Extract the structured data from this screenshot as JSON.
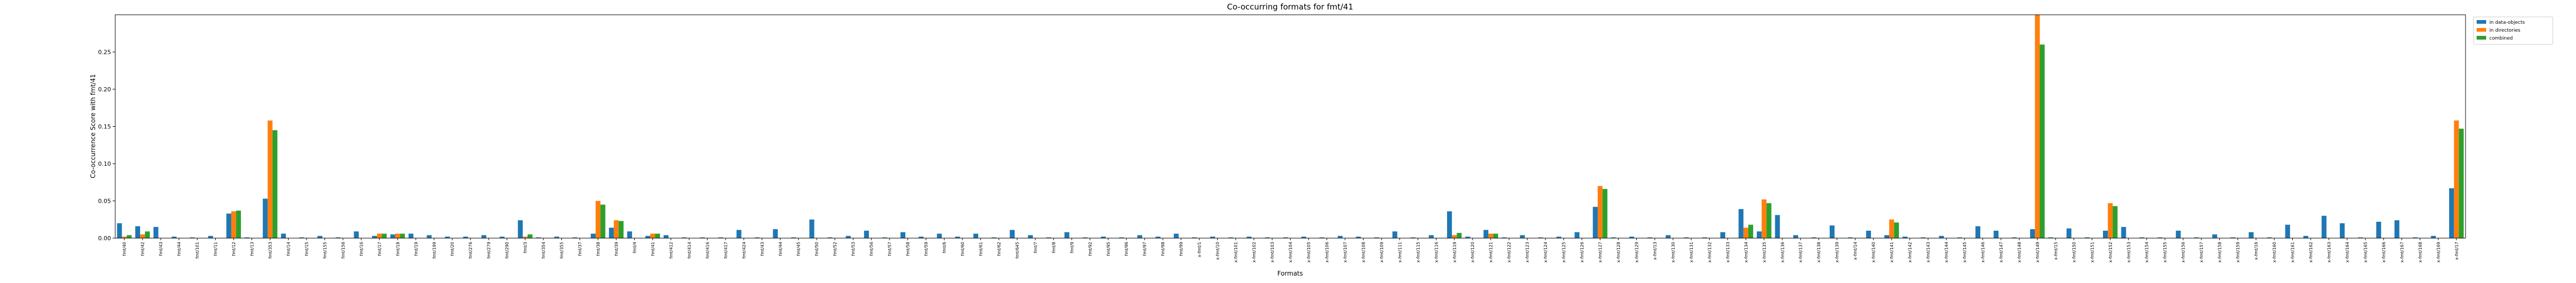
{
  "chart_data": {
    "type": "bar",
    "title": "Co-occurring formats for fmt/41",
    "x_label": "Formats",
    "y_label": "Co-occurrence Score with fmt/41",
    "categories": [
      "fmt/40",
      "fmt/42",
      "fmt/43",
      "fmt/44",
      "fmt/101",
      "fmt/11",
      "fmt/12",
      "fmt/13",
      "fmt/353",
      "fmt/14",
      "fmt/15",
      "fmt/155",
      "fmt/156",
      "fmt/16",
      "fmt/17",
      "fmt/18",
      "fmt/19",
      "fmt/199",
      "fmt/20",
      "fmt/276",
      "fmt/279",
      "fmt/290",
      "fmt/3",
      "fmt/354",
      "fmt/355",
      "fmt/37",
      "fmt/38",
      "fmt/39",
      "fmt/4",
      "fmt/41",
      "fmt/412",
      "fmt/414",
      "fmt/416",
      "fmt/417",
      "fmt/424",
      "fmt/43",
      "fmt/44",
      "fmt/45",
      "fmt/50",
      "fmt/52",
      "fmt/53",
      "fmt/56",
      "fmt/57",
      "fmt/58",
      "fmt/59",
      "fmt/6",
      "fmt/60",
      "fmt/61",
      "fmt/62",
      "fmt/645",
      "fmt/7",
      "fmt/8",
      "fmt/9",
      "fmt/92",
      "fmt/95",
      "fmt/96",
      "fmt/97",
      "fmt/98",
      "fmt/99",
      "x-fmt/1",
      "x-fmt/10",
      "x-fmt/101",
      "x-fmt/102",
      "x-fmt/103",
      "x-fmt/104",
      "x-fmt/105",
      "x-fmt/106",
      "x-fmt/107",
      "x-fmt/108",
      "x-fmt/109",
      "x-fmt/111",
      "x-fmt/115",
      "x-fmt/116",
      "x-fmt/119",
      "x-fmt/120",
      "x-fmt/121",
      "x-fmt/122",
      "x-fmt/123",
      "x-fmt/124",
      "x-fmt/125",
      "x-fmt/126",
      "x-fmt/127",
      "x-fmt/128",
      "x-fmt/129",
      "x-fmt/13",
      "x-fmt/130",
      "x-fmt/131",
      "x-fmt/132",
      "x-fmt/133",
      "x-fmt/134",
      "x-fmt/135",
      "x-fmt/136",
      "x-fmt/137",
      "x-fmt/138",
      "x-fmt/139",
      "x-fmt/14",
      "x-fmt/140",
      "x-fmt/141",
      "x-fmt/142",
      "x-fmt/143",
      "x-fmt/144",
      "x-fmt/145",
      "x-fmt/146",
      "x-fmt/147",
      "x-fmt/148",
      "x-fmt/149",
      "x-fmt/15",
      "x-fmt/150",
      "x-fmt/151",
      "x-fmt/152",
      "x-fmt/153",
      "x-fmt/154",
      "x-fmt/155",
      "x-fmt/156",
      "x-fmt/157",
      "x-fmt/158",
      "x-fmt/159",
      "x-fmt/16",
      "x-fmt/160",
      "x-fmt/161",
      "x-fmt/162",
      "x-fmt/163",
      "x-fmt/164",
      "x-fmt/165",
      "x-fmt/166",
      "x-fmt/167",
      "x-fmt/168",
      "x-fmt/169",
      "x-fmt/17"
    ],
    "series": [
      {
        "name": "in data-objects",
        "color": "#1f77b4",
        "values": [
          0.02,
          0.016,
          0.015,
          0.002,
          0.001,
          0.003,
          0.033,
          0.001,
          0.053,
          0.006,
          0.001,
          0.003,
          0.001,
          0.009,
          0.003,
          0.005,
          0.006,
          0.004,
          0.002,
          0.002,
          0.004,
          0.002,
          0.024,
          0.001,
          0.002,
          0.001,
          0.006,
          0.014,
          0.009,
          0.003,
          0.004,
          0.001,
          0.001,
          0.001,
          0.011,
          0.001,
          0.012,
          0.001,
          0.025,
          0.001,
          0.003,
          0.01,
          0.001,
          0.008,
          0.002,
          0.006,
          0.002,
          0.006,
          0.001,
          0.011,
          0.004,
          0.001,
          0.008,
          0.001,
          0.002,
          0.001,
          0.004,
          0.002,
          0.006,
          0.001,
          0.002,
          0.001,
          0.002,
          0.001,
          0.001,
          0.002,
          0.001,
          0.003,
          0.002,
          0.001,
          0.009,
          0.001,
          0.004,
          0.036,
          0.002,
          0.011,
          0.001,
          0.004,
          0.001,
          0.002,
          0.008,
          0.042,
          0.001,
          0.002,
          0.001,
          0.004,
          0.001,
          0.001,
          0.008,
          0.039,
          0.009,
          0.031,
          0.004,
          0.001,
          0.017,
          0.001,
          0.01,
          0.004,
          0.002,
          0.001,
          0.003,
          0.001,
          0.016,
          0.01,
          0.001,
          0.012,
          0.001,
          0.013,
          0.001,
          0.01,
          0.015,
          0.001,
          0.001,
          0.01,
          0.001,
          0.005,
          0.001,
          0.008,
          0.001,
          0.018,
          0.003,
          0.03,
          0.02,
          0.001,
          0.022,
          0.024,
          0.001,
          0.003,
          0.067
        ]
      },
      {
        "name": "in directories",
        "color": "#ff7f0e",
        "values": [
          0.002,
          0.005,
          0,
          0,
          0,
          0,
          0.036,
          0,
          0.158,
          0,
          0,
          0,
          0,
          0,
          0.006,
          0.006,
          0,
          0,
          0,
          0,
          0,
          0,
          0.002,
          0,
          0,
          0,
          0.05,
          0.024,
          0,
          0.006,
          0,
          0,
          0,
          0,
          0,
          0,
          0,
          0,
          0,
          0,
          0,
          0,
          0,
          0,
          0,
          0,
          0,
          0,
          0,
          0,
          0,
          0,
          0,
          0,
          0,
          0,
          0,
          0,
          0,
          0,
          0,
          0,
          0,
          0,
          0,
          0,
          0,
          0,
          0,
          0,
          0,
          0,
          0,
          0.004,
          0,
          0.006,
          0,
          0,
          0,
          0,
          0,
          0.07,
          0,
          0,
          0,
          0,
          0,
          0,
          0,
          0.014,
          0.052,
          0,
          0,
          0,
          0,
          0,
          0,
          0.025,
          0,
          0,
          0,
          0,
          0,
          0,
          0,
          0.3,
          0,
          0,
          0,
          0.047,
          0,
          0,
          0,
          0,
          0,
          0,
          0,
          0,
          0,
          0,
          0,
          0,
          0,
          0,
          0,
          0,
          0,
          0,
          0.158
        ]
      },
      {
        "name": "combined",
        "color": "#2ca02c",
        "values": [
          0.004,
          0.009,
          0,
          0,
          0,
          0,
          0.037,
          0,
          0.145,
          0,
          0,
          0,
          0,
          0,
          0.006,
          0.006,
          0,
          0,
          0,
          0,
          0,
          0,
          0.005,
          0,
          0,
          0,
          0.045,
          0.023,
          0,
          0.006,
          0,
          0,
          0,
          0,
          0,
          0,
          0,
          0,
          0,
          0,
          0,
          0,
          0,
          0,
          0,
          0,
          0,
          0,
          0,
          0,
          0,
          0,
          0,
          0,
          0,
          0,
          0,
          0,
          0,
          0,
          0,
          0,
          0,
          0,
          0,
          0,
          0,
          0,
          0,
          0,
          0,
          0,
          0,
          0.007,
          0,
          0.006,
          0,
          0,
          0,
          0,
          0,
          0.066,
          0,
          0,
          0,
          0,
          0,
          0,
          0,
          0.018,
          0.047,
          0,
          0,
          0,
          0,
          0,
          0,
          0.021,
          0,
          0,
          0,
          0,
          0,
          0,
          0,
          0.26,
          0,
          0,
          0,
          0.043,
          0,
          0,
          0,
          0,
          0,
          0,
          0,
          0,
          0,
          0,
          0,
          0,
          0,
          0,
          0,
          0,
          0,
          0,
          0.147
        ]
      }
    ],
    "ylim": [
      0,
      0.3
    ],
    "yticks": [
      {
        "value": 0,
        "label": "0.00"
      },
      {
        "value": 0.05,
        "label": "0.05"
      },
      {
        "value": 0.1,
        "label": "0.10"
      },
      {
        "value": 0.15,
        "label": "0.15"
      },
      {
        "value": 0.2,
        "label": "0.20"
      },
      {
        "value": 0.25,
        "label": "0.25"
      }
    ],
    "legend": "upper right outside"
  }
}
